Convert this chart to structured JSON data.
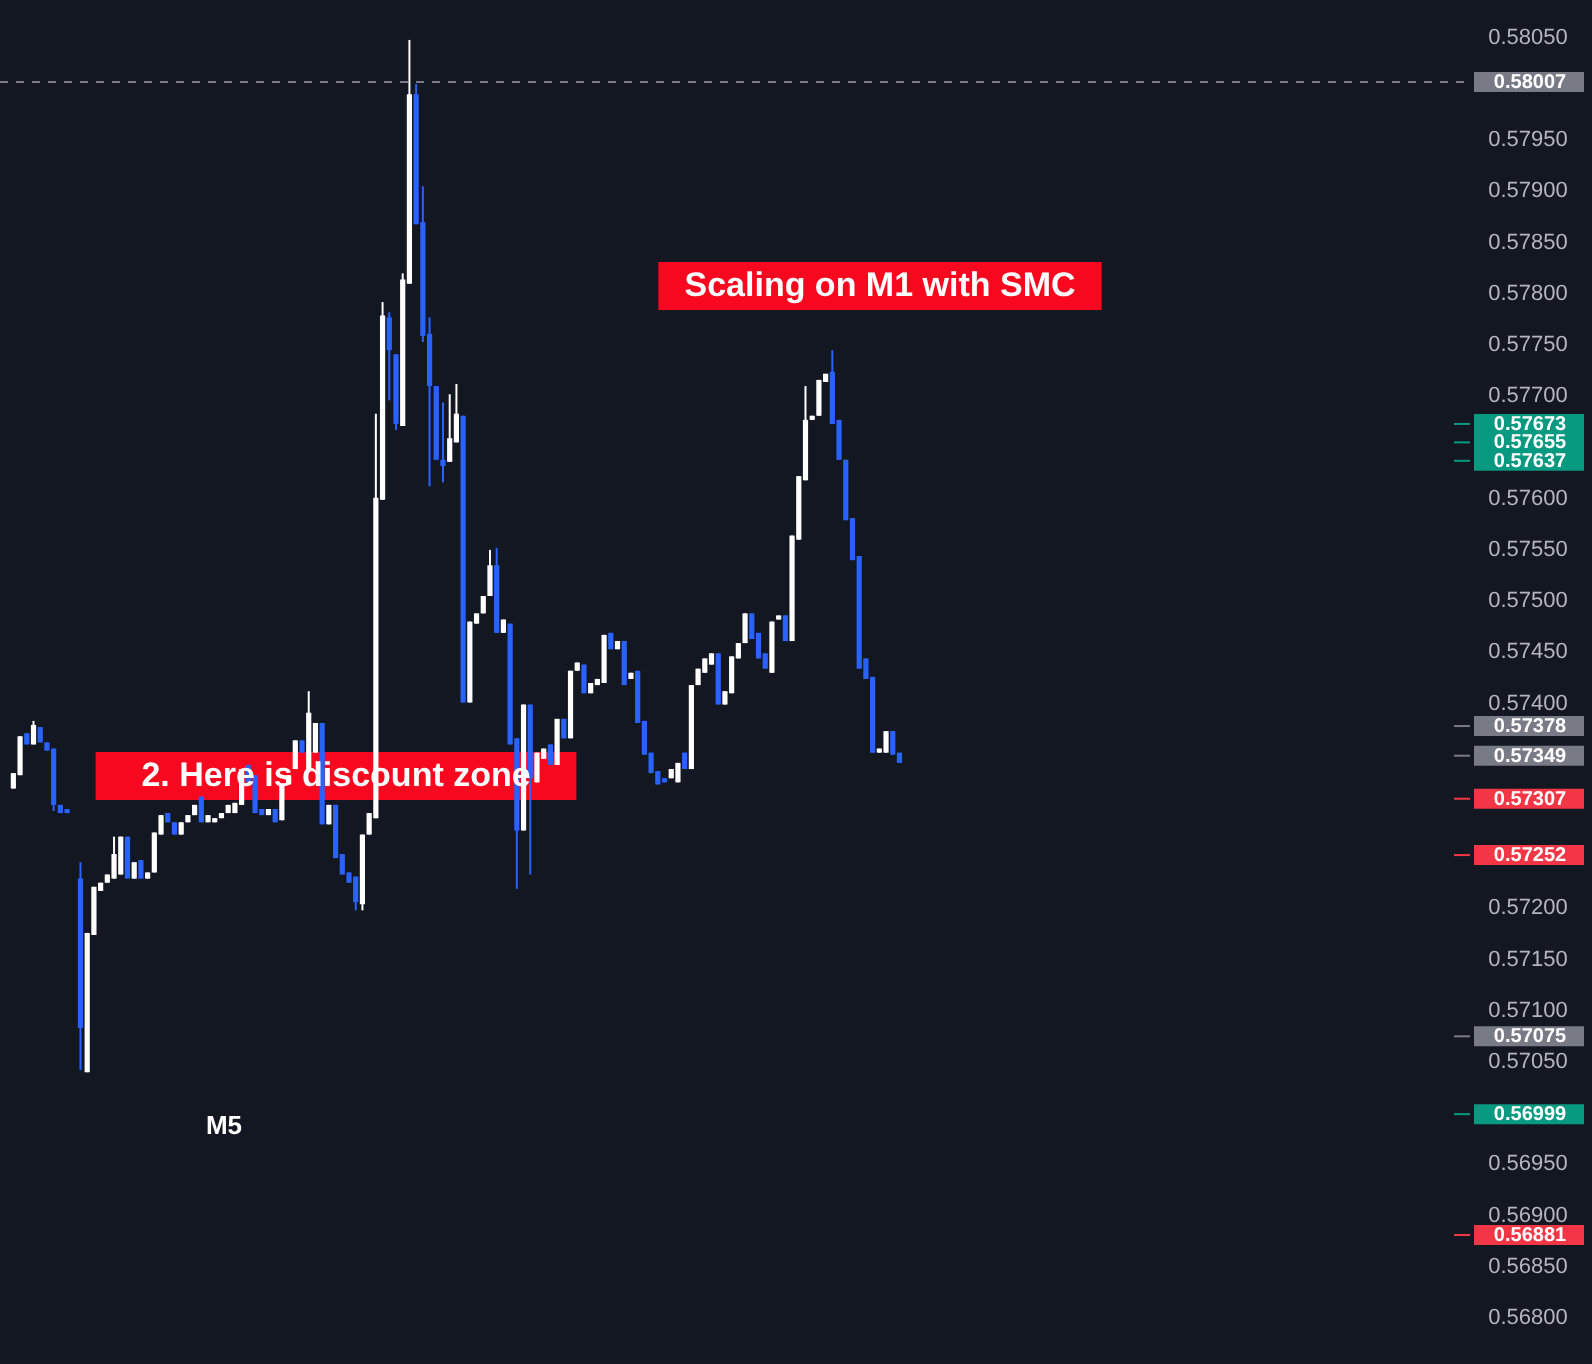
{
  "chart_data": {
    "type": "candlestick",
    "categories": [
      null,
      null,
      null,
      null,
      null,
      null,
      null,
      null,
      null,
      null,
      null,
      null,
      null,
      null,
      null,
      null,
      null,
      null,
      null,
      null,
      null,
      null,
      null,
      null,
      null,
      null,
      null,
      null,
      null,
      null,
      null,
      null,
      null,
      null,
      null,
      null,
      null,
      null,
      null,
      null,
      null,
      null,
      null,
      null,
      null,
      null,
      null,
      null,
      null,
      null,
      null,
      null,
      null,
      null,
      null,
      null,
      null,
      null,
      null,
      null,
      null,
      null,
      null,
      null,
      null,
      null,
      null,
      null,
      null,
      null,
      null,
      null,
      null,
      null,
      null,
      null,
      null,
      null,
      null,
      null,
      null,
      null,
      null,
      null,
      null,
      null,
      null,
      null,
      null,
      null,
      null,
      null,
      null,
      null,
      null,
      null,
      null,
      null,
      null,
      null,
      null,
      null,
      null,
      null,
      null,
      null,
      null,
      null,
      null,
      null,
      null,
      null,
      null,
      null,
      null,
      null,
      null,
      null,
      null,
      null,
      null,
      null,
      null,
      null,
      null,
      null,
      null,
      null,
      null,
      null,
      null,
      null,
      null,
      null,
      null,
      null,
      null,
      null,
      null,
      null,
      null,
      null,
      null,
      null,
      null,
      null,
      null,
      null,
      null,
      null,
      null,
      null,
      null,
      null,
      null,
      null,
      null,
      null,
      null,
      null,
      null,
      null,
      null,
      null,
      null,
      null,
      null,
      null,
      null,
      null,
      null,
      null,
      null,
      null,
      null,
      null,
      null,
      null,
      null,
      null,
      null,
      null,
      null,
      null,
      null,
      null,
      null,
      null,
      null,
      null,
      null,
      null,
      null,
      null,
      null,
      null,
      null,
      null,
      null,
      null,
      null,
      null,
      null,
      null,
      null,
      null,
      null,
      null,
      null,
      null,
      null,
      null,
      null,
      null,
      null,
      null
    ],
    "ohlc": [
      [
        0.57317,
        0.57332,
        0.57317,
        0.57332
      ],
      [
        0.5733,
        0.57368,
        0.5733,
        0.57368
      ],
      [
        0.57371,
        0.57371,
        0.5736,
        0.5736
      ],
      [
        0.5736,
        0.57383,
        0.5736,
        0.57379
      ],
      [
        0.57377,
        0.57377,
        0.57362,
        0.57362
      ],
      [
        0.57362,
        0.57362,
        0.57354,
        0.57354
      ],
      [
        0.57356,
        0.57356,
        0.57295,
        0.57301
      ],
      [
        0.57301,
        0.57301,
        0.57293,
        0.57293
      ],
      [
        0.57297,
        0.57297,
        0.57293,
        0.57293
      ],
      null,
      [
        0.57229,
        0.57245,
        0.57042,
        0.57083
      ],
      [
        0.5704,
        0.57176,
        0.5704,
        0.57176
      ],
      [
        0.57174,
        0.57221,
        0.57174,
        0.57221
      ],
      [
        0.57217,
        0.57225,
        0.57217,
        0.57225
      ],
      [
        0.57225,
        0.57233,
        0.57225,
        0.57233
      ],
      [
        0.57229,
        0.5727,
        0.57229,
        0.57253
      ],
      [
        0.57233,
        0.5727,
        0.57233,
        0.5727
      ],
      [
        0.5727,
        0.5727,
        0.57229,
        0.57229
      ],
      [
        0.57229,
        0.57245,
        0.57229,
        0.57245
      ],
      [
        0.57247,
        0.57247,
        0.57229,
        0.57229
      ],
      [
        0.57229,
        0.57235,
        0.57229,
        0.57235
      ],
      [
        0.57235,
        0.57274,
        0.57235,
        0.57274
      ],
      [
        0.57272,
        0.57291,
        0.57272,
        0.57291
      ],
      [
        0.57293,
        0.57293,
        0.57284,
        0.57284
      ],
      [
        0.57284,
        0.57284,
        0.57272,
        0.57272
      ],
      [
        0.57272,
        0.57284,
        0.57272,
        0.57284
      ],
      [
        0.57284,
        0.57291,
        0.57284,
        0.57291
      ],
      [
        0.57291,
        0.57301,
        0.57291,
        0.57301
      ],
      [
        0.57309,
        0.57309,
        0.57284,
        0.57284
      ],
      [
        0.57284,
        0.57291,
        0.57284,
        0.57291
      ],
      [
        0.57284,
        0.57288,
        0.57284,
        0.57288
      ],
      [
        0.57288,
        0.57293,
        0.57288,
        0.57293
      ],
      [
        0.57293,
        0.57301,
        0.57293,
        0.57301
      ],
      [
        0.57293,
        0.57303,
        0.57293,
        0.57303
      ],
      [
        0.57301,
        0.57336,
        0.57301,
        0.57336
      ],
      [
        0.5734,
        0.5734,
        0.57323,
        0.57323
      ],
      [
        0.5733,
        0.5733,
        0.57293,
        0.57293
      ],
      [
        0.57297,
        0.57297,
        0.57291,
        0.57291
      ],
      [
        0.57291,
        0.57297,
        0.57291,
        0.57297
      ],
      [
        0.57297,
        0.57297,
        0.57284,
        0.57284
      ],
      [
        0.57286,
        0.57321,
        0.57286,
        0.57321
      ],
      [
        0.57321,
        0.5733,
        0.57321,
        0.5733
      ],
      [
        0.57336,
        0.57364,
        0.57336,
        0.57364
      ],
      [
        0.57364,
        0.57364,
        0.57352,
        0.57352
      ],
      [
        0.57336,
        0.57412,
        0.57336,
        0.57391
      ],
      [
        0.57352,
        0.57381,
        0.57352,
        0.57381
      ],
      [
        0.57381,
        0.57381,
        0.57282,
        0.57282
      ],
      [
        0.57282,
        0.57301,
        0.57282,
        0.57301
      ],
      [
        0.57301,
        0.57301,
        0.57249,
        0.57249
      ],
      [
        0.57253,
        0.57253,
        0.57233,
        0.57233
      ],
      [
        0.57235,
        0.57235,
        0.57225,
        0.57225
      ],
      [
        0.57231,
        0.57231,
        0.57198,
        0.57206
      ],
      [
        0.57204,
        0.57272,
        0.57198,
        0.57272
      ],
      [
        0.57272,
        0.57293,
        0.57272,
        0.57293
      ],
      [
        0.57288,
        0.57683,
        0.57288,
        0.57601
      ],
      [
        0.57599,
        0.57792,
        0.57599,
        0.57779
      ],
      [
        0.57777,
        0.57782,
        0.57696,
        0.57745
      ],
      [
        0.57741,
        0.57741,
        0.57667,
        0.57673
      ],
      [
        0.57671,
        0.5782,
        0.57671,
        0.57814
      ],
      [
        0.5781,
        0.58048,
        0.5781,
        0.57995
      ],
      [
        0.57995,
        0.58005,
        0.57868,
        0.57868
      ],
      [
        0.5787,
        0.57905,
        0.57753,
        0.57759
      ],
      [
        0.57761,
        0.57777,
        0.57612,
        0.5771
      ],
      [
        0.5771,
        0.5771,
        0.57638,
        0.57638
      ],
      [
        0.57638,
        0.57694,
        0.57616,
        0.57632
      ],
      [
        0.57636,
        0.57702,
        0.57636,
        0.57659
      ],
      [
        0.57655,
        0.57712,
        0.57655,
        0.57683
      ],
      [
        0.57681,
        0.57681,
        0.57401,
        0.57401
      ],
      [
        0.57401,
        0.5748,
        0.57401,
        0.5748
      ],
      [
        0.57478,
        0.57488,
        0.57478,
        0.57488
      ],
      [
        0.57488,
        0.57505,
        0.57488,
        0.57505
      ],
      [
        0.57505,
        0.5755,
        0.57505,
        0.57535
      ],
      [
        0.57535,
        0.57552,
        0.57469,
        0.57469
      ],
      [
        0.57469,
        0.57482,
        0.57469,
        0.57482
      ],
      [
        0.57478,
        0.57478,
        0.5736,
        0.5736
      ],
      [
        0.57366,
        0.57366,
        0.57219,
        0.57276
      ],
      [
        0.57276,
        0.57399,
        0.57276,
        0.57399
      ],
      [
        0.57399,
        0.57399,
        0.57233,
        0.57327
      ],
      [
        0.57323,
        0.57352,
        0.57323,
        0.57352
      ],
      [
        0.57346,
        0.57356,
        0.57346,
        0.57356
      ],
      [
        0.5736,
        0.5736,
        0.5734,
        0.5734
      ],
      [
        0.5734,
        0.57385,
        0.5734,
        0.57385
      ],
      [
        0.57385,
        0.57385,
        0.57366,
        0.57366
      ],
      [
        0.57366,
        0.57432,
        0.57366,
        0.57432
      ],
      [
        0.57432,
        0.5744,
        0.57432,
        0.5744
      ],
      [
        0.57438,
        0.57438,
        0.5741,
        0.5741
      ],
      [
        0.5741,
        0.5742,
        0.5741,
        0.5742
      ],
      [
        0.57418,
        0.57424,
        0.57418,
        0.57424
      ],
      [
        0.5742,
        0.57467,
        0.5742,
        0.57467
      ],
      [
        0.57469,
        0.57469,
        0.57453,
        0.57453
      ],
      [
        0.57453,
        0.57461,
        0.57453,
        0.57461
      ],
      [
        0.57461,
        0.57461,
        0.57418,
        0.57418
      ],
      [
        0.57424,
        0.5743,
        0.57424,
        0.5743
      ],
      [
        0.57432,
        0.57432,
        0.57381,
        0.57381
      ],
      [
        0.57383,
        0.57383,
        0.5735,
        0.5735
      ],
      [
        0.57352,
        0.57352,
        0.57332,
        0.57332
      ],
      [
        0.57334,
        0.57334,
        0.57321,
        0.57321
      ],
      [
        0.57327,
        0.57327,
        0.57323,
        0.57323
      ],
      [
        0.57327,
        0.57336,
        0.57327,
        0.57336
      ],
      [
        0.57323,
        0.57342,
        0.57323,
        0.57342
      ],
      [
        0.57352,
        0.57352,
        0.57336,
        0.57336
      ],
      [
        0.57336,
        0.57418,
        0.57336,
        0.57418
      ],
      [
        0.57418,
        0.57434,
        0.57418,
        0.57434
      ],
      [
        0.5743,
        0.57444,
        0.5743,
        0.57444
      ],
      [
        0.57438,
        0.57449,
        0.57438,
        0.57449
      ],
      [
        0.57449,
        0.57449,
        0.57399,
        0.57399
      ],
      [
        0.57399,
        0.57412,
        0.57399,
        0.57412
      ],
      [
        0.5741,
        0.57446,
        0.5741,
        0.57446
      ],
      [
        0.57444,
        0.57459,
        0.57444,
        0.57459
      ],
      [
        0.57459,
        0.57488,
        0.57459,
        0.57488
      ],
      [
        0.57488,
        0.57488,
        0.57463,
        0.57463
      ],
      [
        0.57469,
        0.57469,
        0.57444,
        0.57444
      ],
      [
        0.57449,
        0.57449,
        0.57434,
        0.57434
      ],
      [
        0.5743,
        0.5748,
        0.5743,
        0.5748
      ],
      [
        0.57482,
        0.57486,
        0.57482,
        0.57486
      ],
      [
        0.57486,
        0.57486,
        0.57461,
        0.57461
      ],
      [
        0.57461,
        0.57564,
        0.57461,
        0.57564
      ],
      [
        0.5756,
        0.57622,
        0.5756,
        0.57622
      ],
      [
        0.57618,
        0.5771,
        0.57618,
        0.57677
      ],
      [
        0.57677,
        0.57681,
        0.57677,
        0.57681
      ],
      [
        0.57681,
        0.57716,
        0.57681,
        0.57716
      ],
      [
        0.57714,
        0.57722,
        0.57714,
        0.57722
      ],
      [
        0.57724,
        0.57745,
        0.57673,
        0.57673
      ],
      [
        0.57677,
        0.57677,
        0.57638,
        0.57638
      ],
      [
        0.57638,
        0.57638,
        0.57579,
        0.57579
      ],
      [
        0.57581,
        0.57581,
        0.5754,
        0.5754
      ],
      [
        0.57544,
        0.57544,
        0.57434,
        0.57434
      ],
      [
        0.57444,
        0.57444,
        0.57424,
        0.57424
      ],
      [
        0.57426,
        0.57426,
        0.57352,
        0.57352
      ],
      [
        0.57352,
        0.57356,
        0.57352,
        0.57356
      ],
      [
        0.57352,
        0.57373,
        0.57352,
        0.57373
      ],
      [
        0.57373,
        0.57373,
        0.5735,
        0.5735
      ],
      [
        0.57352,
        0.57352,
        0.57342,
        0.57342
      ],
      null,
      null,
      null,
      null,
      null,
      null,
      null,
      null,
      null,
      null,
      null,
      null,
      null,
      null,
      null,
      null,
      null,
      null,
      null,
      null,
      null,
      null,
      null,
      null,
      null,
      null,
      null,
      null,
      null,
      null,
      null,
      null,
      null,
      null,
      null,
      null,
      null,
      null,
      null,
      null,
      null,
      null,
      null,
      null,
      null,
      null,
      null,
      null,
      null,
      null,
      null,
      null,
      null,
      null,
      null,
      null,
      null,
      null,
      null,
      null,
      null,
      null,
      null,
      null,
      null,
      null,
      null,
      null,
      null,
      null,
      null,
      null,
      null,
      null,
      null,
      null,
      null,
      null,
      null,
      null,
      null,
      null,
      null
    ],
    "colors": [
      "#ffffff",
      "#ffffff",
      "#2962ff",
      "#ffffff",
      "#2962ff",
      "#2962ff",
      "#2962ff",
      "#2962ff",
      "#2962ff",
      null,
      "#2962ff",
      "#ffffff",
      "#ffffff",
      "#ffffff",
      "#ffffff",
      "#ffffff",
      "#ffffff",
      "#2962ff",
      "#ffffff",
      "#2962ff",
      "#ffffff",
      "#ffffff",
      "#ffffff",
      "#2962ff",
      "#2962ff",
      "#ffffff",
      "#ffffff",
      "#ffffff",
      "#2962ff",
      "#ffffff",
      "#ffffff",
      "#ffffff",
      "#ffffff",
      "#ffffff",
      "#ffffff",
      "#2962ff",
      "#2962ff",
      "#2962ff",
      "#ffffff",
      "#2962ff",
      "#ffffff",
      "#ffffff",
      "#ffffff",
      "#2962ff",
      "#ffffff",
      "#ffffff",
      "#2962ff",
      "#ffffff",
      "#2962ff",
      "#2962ff",
      "#2962ff",
      "#2962ff",
      "#ffffff",
      "#ffffff",
      "#ffffff",
      "#ffffff",
      "#2962ff",
      "#2962ff",
      "#ffffff",
      "#ffffff",
      "#2962ff",
      "#2962ff",
      "#2962ff",
      "#2962ff",
      "#2962ff",
      "#ffffff",
      "#ffffff",
      "#2962ff",
      "#ffffff",
      "#ffffff",
      "#ffffff",
      "#ffffff",
      "#2962ff",
      "#ffffff",
      "#2962ff",
      "#2962ff",
      "#ffffff",
      "#2962ff",
      "#ffffff",
      "#ffffff",
      "#2962ff",
      "#ffffff",
      "#2962ff",
      "#ffffff",
      "#ffffff",
      "#2962ff",
      "#ffffff",
      "#ffffff",
      "#ffffff",
      "#2962ff",
      "#ffffff",
      "#2962ff",
      "#ffffff",
      "#2962ff",
      "#2962ff",
      "#2962ff",
      "#2962ff",
      "#2962ff",
      "#ffffff",
      "#ffffff",
      "#2962ff",
      "#ffffff",
      "#ffffff",
      "#ffffff",
      "#ffffff",
      "#2962ff",
      "#ffffff",
      "#ffffff",
      "#ffffff",
      "#ffffff",
      "#2962ff",
      "#2962ff",
      "#2962ff",
      "#ffffff",
      "#ffffff",
      "#2962ff",
      "#ffffff",
      "#ffffff",
      "#ffffff",
      "#ffffff",
      "#ffffff",
      "#ffffff",
      "#2962ff",
      "#2962ff",
      "#2962ff",
      "#2962ff",
      "#2962ff",
      "#2962ff",
      "#2962ff",
      "#ffffff",
      "#ffffff",
      "#2962ff",
      "#2962ff",
      null,
      null,
      null,
      null,
      null,
      null,
      null,
      null,
      null,
      null,
      null,
      null,
      null,
      null,
      null,
      null,
      null,
      null,
      null,
      null,
      null,
      null,
      null,
      null,
      null,
      null,
      null,
      null,
      null,
      null,
      null,
      null,
      null,
      null,
      null,
      null,
      null,
      null,
      null,
      null,
      null,
      null,
      null,
      null,
      null,
      null,
      null,
      null,
      null,
      null,
      null,
      null,
      null,
      null,
      null,
      null,
      null,
      null,
      null,
      null,
      null,
      null,
      null,
      null,
      null,
      null,
      null,
      null,
      null,
      null,
      null,
      null,
      null,
      null,
      null,
      null,
      null,
      null,
      null,
      null,
      null,
      null,
      null
    ],
    "ylim": [
      0.56755,
      0.58087
    ],
    "yticks": [
      {
        "value": 0.568,
        "label": "0.56800"
      },
      {
        "value": 0.5685,
        "label": "0.56850"
      },
      {
        "value": 0.569,
        "label": "0.56900"
      },
      {
        "value": 0.5695,
        "label": "0.56950"
      },
      {
        "value": 0.5705,
        "label": "0.57050"
      },
      {
        "value": 0.571,
        "label": "0.57100"
      },
      {
        "value": 0.5715,
        "label": "0.57150"
      },
      {
        "value": 0.572,
        "label": "0.57200"
      },
      {
        "value": 0.574,
        "label": "0.57400"
      },
      {
        "value": 0.5745,
        "label": "0.57450"
      },
      {
        "value": 0.575,
        "label": "0.57500"
      },
      {
        "value": 0.5755,
        "label": "0.57550"
      },
      {
        "value": 0.576,
        "label": "0.57600"
      },
      {
        "value": 0.577,
        "label": "0.57700"
      },
      {
        "value": 0.5775,
        "label": "0.57750"
      },
      {
        "value": 0.578,
        "label": "0.57800"
      },
      {
        "value": 0.5785,
        "label": "0.57850"
      },
      {
        "value": 0.579,
        "label": "0.57900"
      },
      {
        "value": 0.5795,
        "label": "0.57950"
      },
      {
        "value": 0.5805,
        "label": "0.58050"
      }
    ],
    "tick_labels": "y",
    "ref_lines": [
      {
        "axis": "y",
        "value": 0.58007,
        "label": "0.58007",
        "color": "#787b86",
        "line_style": "dashed"
      },
      {
        "axis": "y",
        "value": 0.57673,
        "label": "0.57673",
        "color": "#089981"
      },
      {
        "axis": "y",
        "value": 0.57655,
        "label": "0.57655",
        "color": "#089981"
      },
      {
        "axis": "y",
        "value": 0.57637,
        "label": "0.57637",
        "color": "#089981"
      },
      {
        "axis": "y",
        "value": 0.57378,
        "label": "0.57378",
        "color": "#787b86"
      },
      {
        "axis": "y",
        "value": 0.57349,
        "label": "0.57349",
        "color": "#787b86"
      },
      {
        "axis": "y",
        "value": 0.57307,
        "label": "0.57307",
        "color": "#f23645"
      },
      {
        "axis": "y",
        "value": 0.57252,
        "label": "0.57252",
        "color": "#f23645"
      },
      {
        "axis": "y",
        "value": 0.57075,
        "label": "0.57075",
        "color": "#787b86"
      },
      {
        "axis": "y",
        "value": 0.56999,
        "label": "0.56999",
        "color": "#089981"
      },
      {
        "axis": "y",
        "value": 0.56881,
        "label": "0.56881",
        "color": "#f23645"
      }
    ],
    "annotations": [
      "Scaling on M1 with SMC",
      "2. Here is discount zone",
      "M5"
    ]
  }
}
